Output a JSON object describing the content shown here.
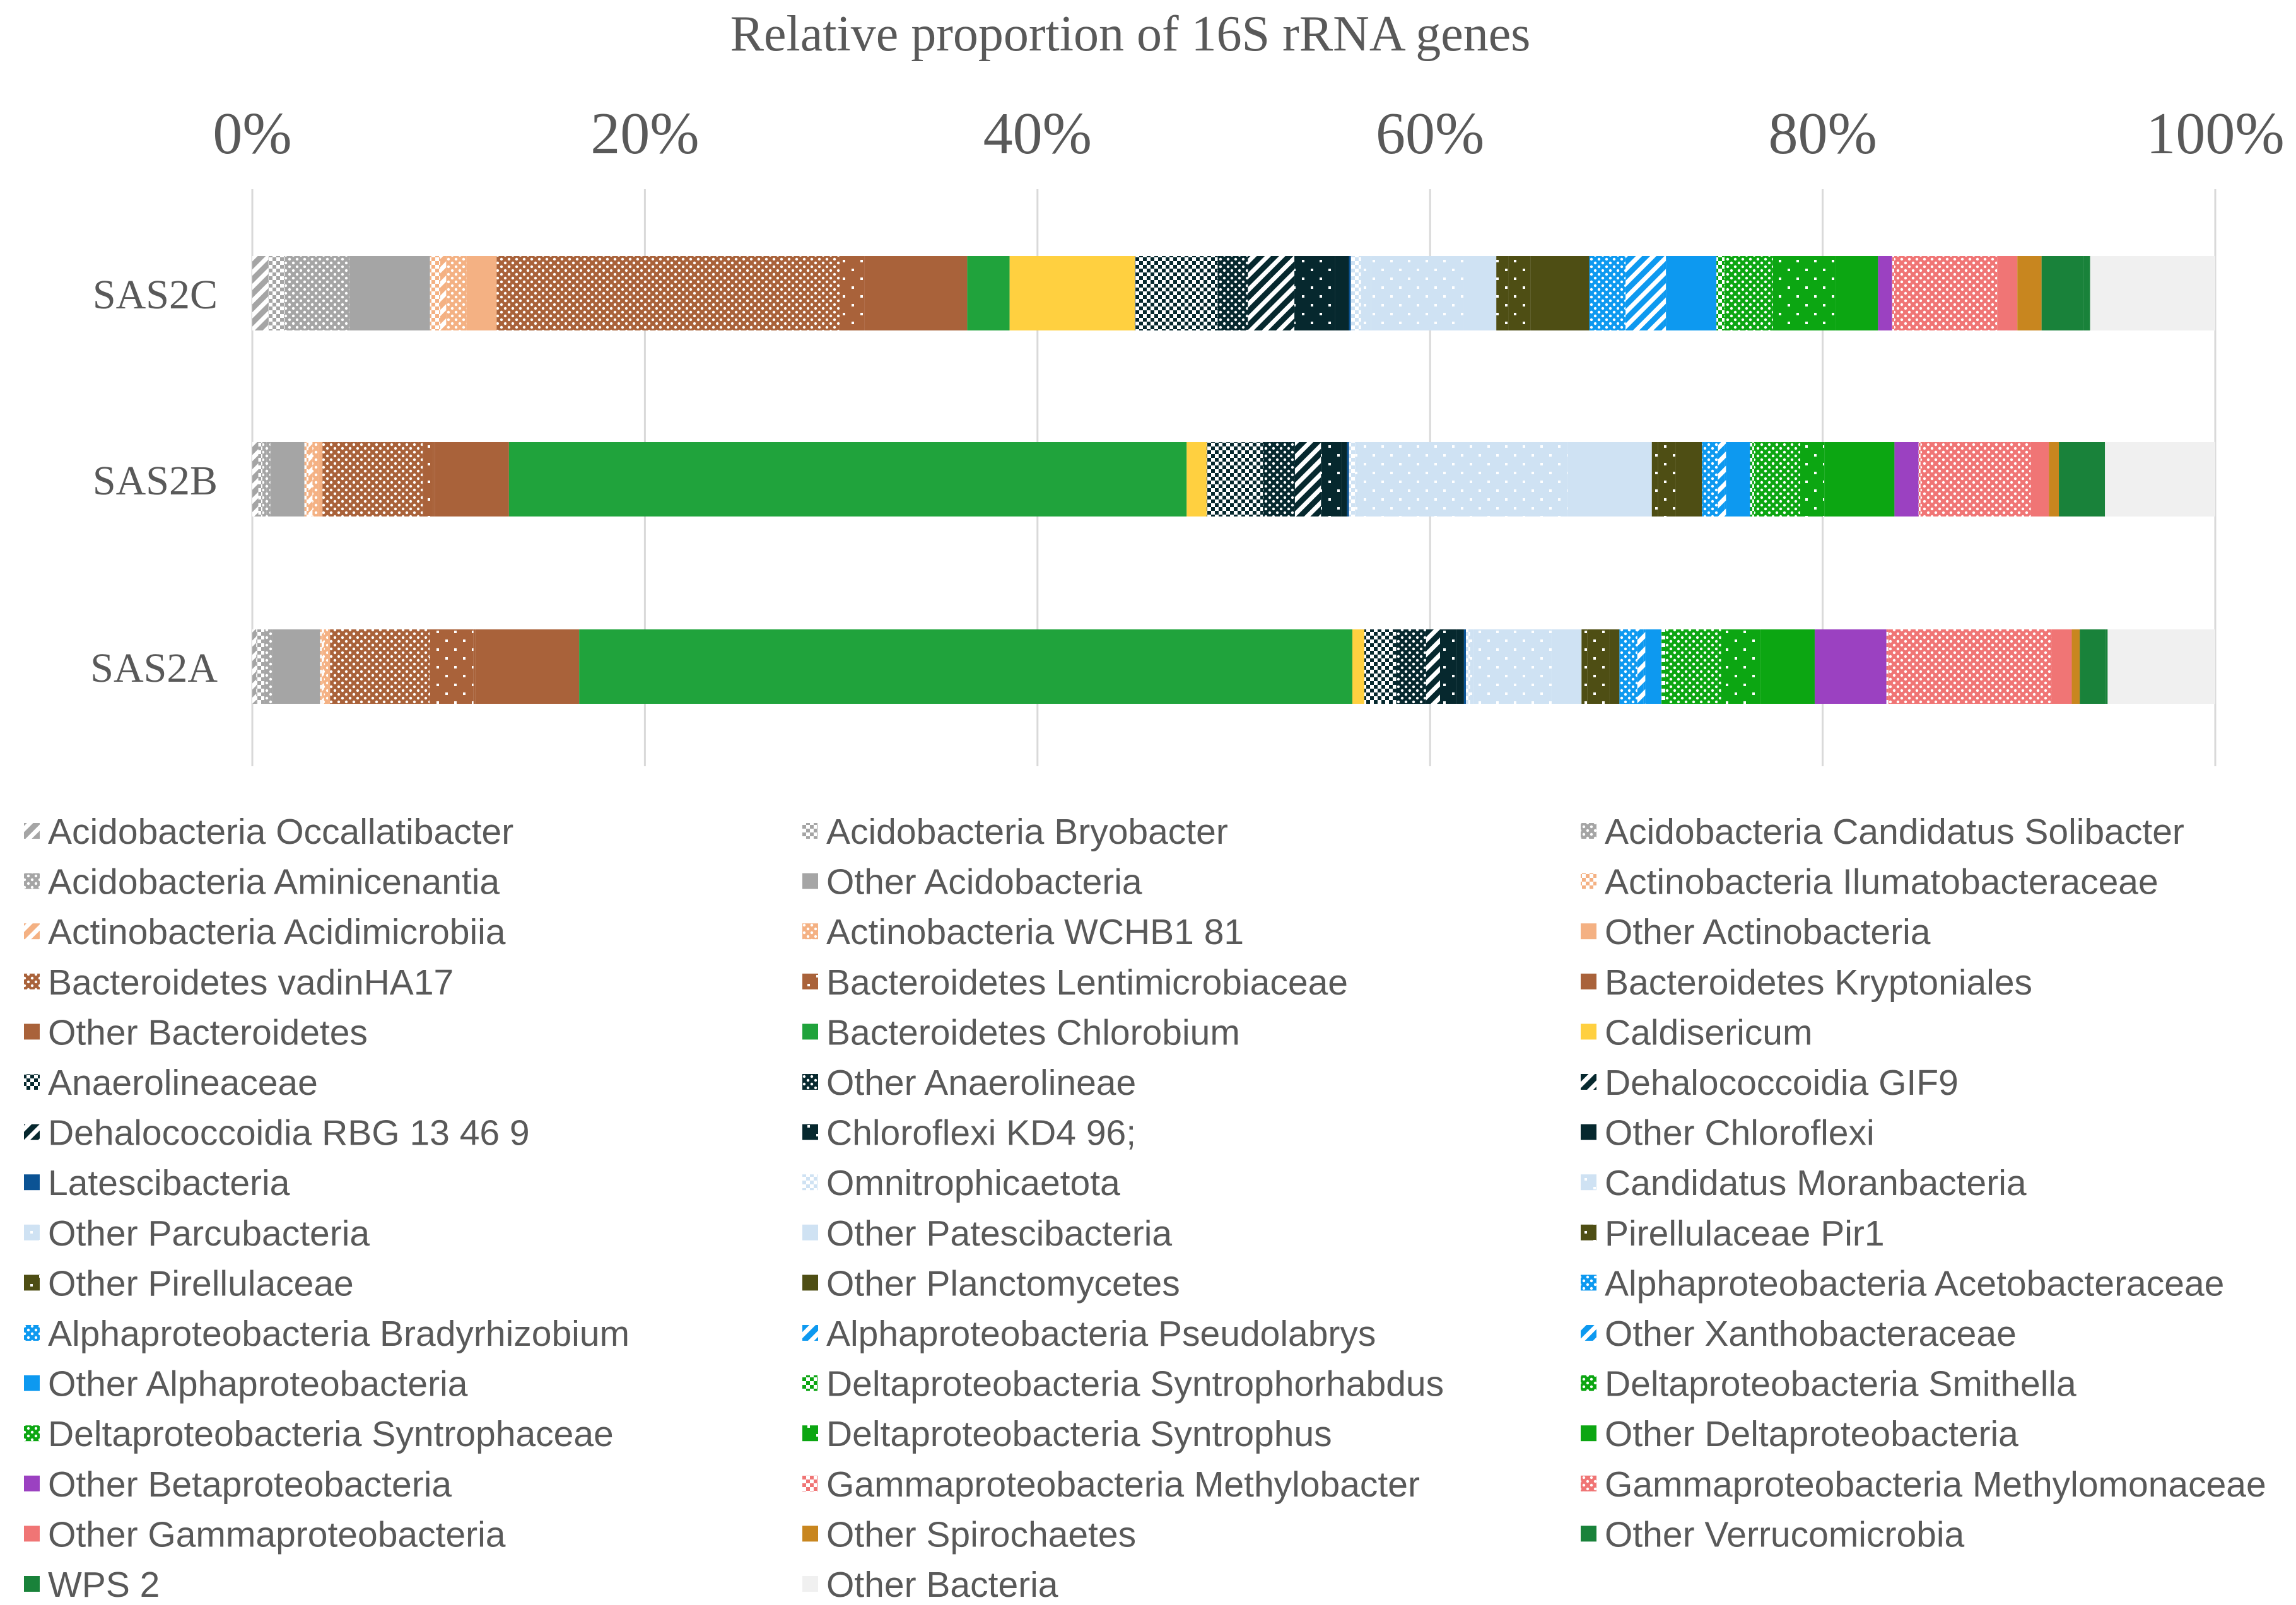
{
  "chart_data": {
    "type": "bar",
    "orientation": "horizontal",
    "stacked": "percent",
    "title": "Relative proportion of 16S rRNA genes",
    "xlabel": "",
    "ylabel": "",
    "xlim": [
      0,
      100
    ],
    "ticks": [
      "0%",
      "20%",
      "40%",
      "60%",
      "80%",
      "100%"
    ],
    "tick_values": [
      0,
      20,
      40,
      60,
      80,
      100
    ],
    "grid": true,
    "legend_position": "bottom",
    "categories": [
      "SAS2C",
      "SAS2B",
      "SAS2A"
    ],
    "series": [
      {
        "name": "Acidobacteria Occallatibacter",
        "color": "#a5a5a5",
        "pattern": "diag",
        "values": [
          0.8,
          0.3,
          0.2
        ]
      },
      {
        "name": "Acidobacteria Bryobacter",
        "color": "#a5a5a5",
        "pattern": "check",
        "values": [
          0.8,
          0.2,
          0.4
        ]
      },
      {
        "name": "Acidobacteria Candidatus Solibacter",
        "color": "#a5a5a5",
        "pattern": "dots-w",
        "values": [
          1.2,
          0.2,
          0.3
        ]
      },
      {
        "name": "Acidobacteria Aminicenantia",
        "color": "#a5a5a5",
        "pattern": "dots-w",
        "values": [
          2.0,
          0.2,
          0.1
        ]
      },
      {
        "name": "Other Acidobacteria",
        "color": "#a5a5a5",
        "pattern": "solid",
        "values": [
          4.0,
          1.7,
          2.4
        ]
      },
      {
        "name": "Actinobacteria Ilumatobacteraceae",
        "color": "#f4b183",
        "pattern": "check",
        "values": [
          0.5,
          0.2,
          0.1
        ]
      },
      {
        "name": "Actinobacteria Acidimicrobiia",
        "color": "#f4b183",
        "pattern": "diag",
        "values": [
          0.3,
          0.2,
          0.1
        ]
      },
      {
        "name": "Actinobacteria WCHB1 81",
        "color": "#f4b183",
        "pattern": "dots-w",
        "values": [
          1.0,
          0.3,
          0.2
        ]
      },
      {
        "name": "Other Actinobacteria",
        "color": "#f4b183",
        "pattern": "solid",
        "values": [
          1.5,
          0.2,
          0.1
        ]
      },
      {
        "name": "Bacteroidetes vadinHA17",
        "color": "#a9623a",
        "pattern": "dots-w",
        "values": [
          17.0,
          5.0,
          5.0
        ]
      },
      {
        "name": "Bacteroidetes Lentimicrobiaceae",
        "color": "#a9623a",
        "pattern": "sparse",
        "values": [
          1.2,
          0.5,
          2.2
        ]
      },
      {
        "name": "Bacteroidetes Kryptoniales",
        "color": "#a9623a",
        "pattern": "solid",
        "values": [
          0.2,
          0.1,
          0.1
        ]
      },
      {
        "name": "Other Bacteroidetes",
        "color": "#a9623a",
        "pattern": "solid",
        "values": [
          4.9,
          3.7,
          5.2
        ]
      },
      {
        "name": "Bacteroidetes Chlorobium",
        "color": "#20a33c",
        "pattern": "solid",
        "values": [
          2.1,
          33.8,
          38.8
        ]
      },
      {
        "name": "Caldisericum",
        "color": "#ffd040",
        "pattern": "solid",
        "values": [
          6.2,
          1.0,
          0.6
        ]
      },
      {
        "name": "Anaerolineaceae",
        "color": "#06282e",
        "pattern": "check",
        "values": [
          4.1,
          2.8,
          1.6
        ]
      },
      {
        "name": "Other Anaerolineae",
        "color": "#06282e",
        "pattern": "dots-w",
        "values": [
          1.5,
          1.6,
          1.5
        ]
      },
      {
        "name": "Dehalococcoidia GIF9",
        "color": "#06282e",
        "pattern": "diag",
        "values": [
          1.1,
          0.9,
          0.4
        ]
      },
      {
        "name": "Dehalococcoidia RBG 13 46 9",
        "color": "#06282e",
        "pattern": "diag",
        "values": [
          1.2,
          0.4,
          0.3
        ]
      },
      {
        "name": "Chloroflexi KD4 96;",
        "color": "#06282e",
        "pattern": "sparse",
        "values": [
          2.0,
          1.0,
          0.8
        ]
      },
      {
        "name": "Other Chloroflexi",
        "color": "#06282e",
        "pattern": "solid",
        "values": [
          0.7,
          0.3,
          0.4
        ]
      },
      {
        "name": "Latescibacteria",
        "color": "#0b5394",
        "pattern": "solid",
        "values": [
          0.1,
          0.1,
          0.1
        ]
      },
      {
        "name": "Omnitrophicaetota",
        "color": "#cfe2f3",
        "pattern": "check",
        "values": [
          0.5,
          0.3,
          0.2
        ]
      },
      {
        "name": "Candidatus Moranbacteria",
        "color": "#cfe2f3",
        "pattern": "sparse",
        "values": [
          0.5,
          0.2,
          0.2
        ]
      },
      {
        "name": "Other Parcubacteria",
        "color": "#cfe2f3",
        "pattern": "sparse",
        "values": [
          4.6,
          10.4,
          3.9
        ]
      },
      {
        "name": "Other Patescibacteria",
        "color": "#cfe2f3",
        "pattern": "solid",
        "values": [
          1.6,
          4.2,
          1.5
        ]
      },
      {
        "name": "Pirellulaceae Pir1",
        "color": "#4e4e14",
        "pattern": "sparse",
        "values": [
          0.6,
          0.3,
          0.3
        ]
      },
      {
        "name": "Other Pirellulaceae",
        "color": "#4e4e14",
        "pattern": "sparse",
        "values": [
          1.1,
          0.9,
          1.1
        ]
      },
      {
        "name": "Other Planctomycetes",
        "color": "#4e4e14",
        "pattern": "solid",
        "values": [
          2.9,
          1.3,
          0.5
        ]
      },
      {
        "name": "Alphaproteobacteria Acetobacteraceae",
        "color": "#0d99f0",
        "pattern": "dots-w",
        "values": [
          1.0,
          0.4,
          0.5
        ]
      },
      {
        "name": "Alphaproteobacteria Bradyrhizobium",
        "color": "#0d99f0",
        "pattern": "dots-w",
        "values": [
          0.8,
          0.4,
          0.4
        ]
      },
      {
        "name": "Alphaproteobacteria Pseudolabrys",
        "color": "#0d99f0",
        "pattern": "diag",
        "values": [
          1.9,
          0.3,
          0.3
        ]
      },
      {
        "name": "Other Xanthobacteraceae",
        "color": "#0d99f0",
        "pattern": "diag",
        "values": [
          0.1,
          0.1,
          0.1
        ]
      },
      {
        "name": "Other Alphaproteobacteria",
        "color": "#0d99f0",
        "pattern": "solid",
        "values": [
          2.5,
          1.2,
          0.8
        ]
      },
      {
        "name": "Deltaproteobacteria Syntrophorhabdus",
        "color": "#0ca612",
        "pattern": "check",
        "values": [
          0.4,
          0.2,
          0.2
        ]
      },
      {
        "name": "Deltaproteobacteria Smithella",
        "color": "#0ca612",
        "pattern": "dots-w",
        "values": [
          2.0,
          2.0,
          2.6
        ]
      },
      {
        "name": "Deltaproteobacteria Syntrophaceae",
        "color": "#0ca612",
        "pattern": "dots-w",
        "values": [
          0.4,
          0.3,
          0.2
        ]
      },
      {
        "name": "Deltaproteobacteria Syntrophus",
        "color": "#0ca612",
        "pattern": "sparse",
        "values": [
          3.1,
          1.2,
          2.0
        ]
      },
      {
        "name": "Other Deltaproteobacteria",
        "color": "#0ca612",
        "pattern": "solid",
        "values": [
          2.1,
          3.5,
          2.7
        ]
      },
      {
        "name": "Other Betaproteobacteria",
        "color": "#9b41c1",
        "pattern": "solid",
        "values": [
          0.7,
          1.2,
          3.6
        ]
      },
      {
        "name": "Gammaproteobacteria Methylobacter",
        "color": "#f07575",
        "pattern": "check",
        "values": [
          0.1,
          0.1,
          0.1
        ]
      },
      {
        "name": "Gammaproteobacteria Methylomonaceae",
        "color": "#f07575",
        "pattern": "dots-w",
        "values": [
          5.1,
          5.5,
          8.2
        ]
      },
      {
        "name": "Other Gammaproteobacteria",
        "color": "#f07575",
        "pattern": "solid",
        "values": [
          1.0,
          0.9,
          1.0
        ]
      },
      {
        "name": "Other Spirochaetes",
        "color": "#c8861f",
        "pattern": "solid",
        "values": [
          1.2,
          0.5,
          0.4
        ]
      },
      {
        "name": "Other Verrucomicrobia",
        "color": "#19823a",
        "pattern": "solid",
        "values": [
          2.1,
          2.2,
          1.3
        ]
      },
      {
        "name": "WPS 2",
        "color": "#19823a",
        "pattern": "solid",
        "values": [
          0.3,
          0.1,
          0.1
        ]
      },
      {
        "name": "Other Bacteria",
        "color": "#f0f0f0",
        "pattern": "solid",
        "values": [
          6.2,
          5.5,
          5.4
        ]
      }
    ]
  }
}
